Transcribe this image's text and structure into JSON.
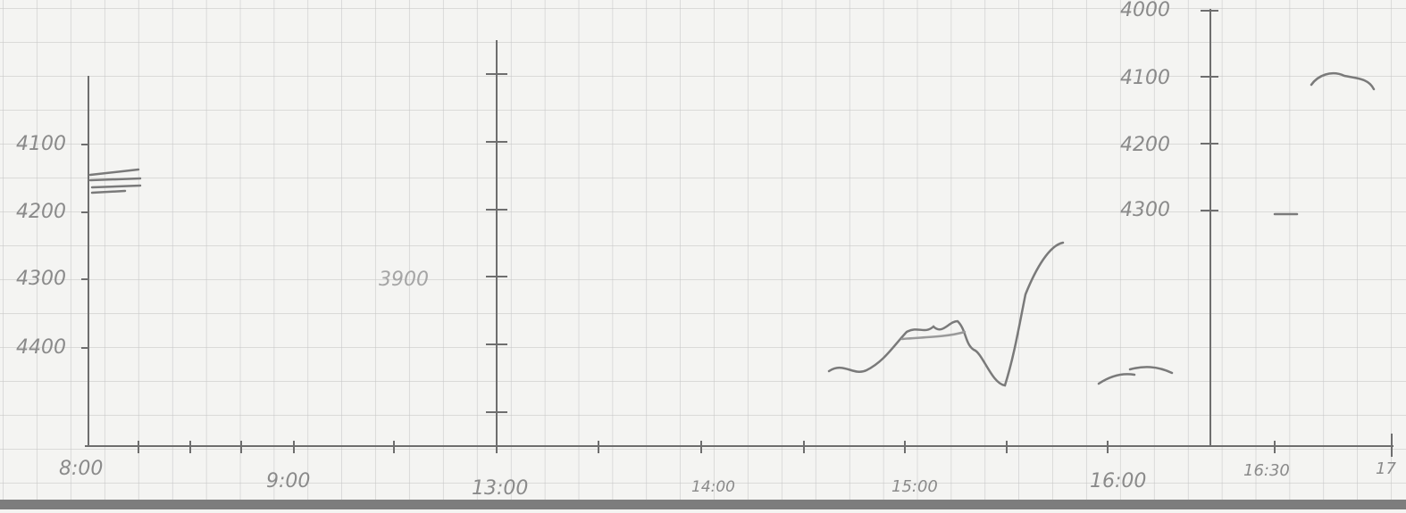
{
  "left_axis": {
    "labels": [
      "4100",
      "4200",
      "4300",
      "4400"
    ]
  },
  "middle_axis": {
    "labels": [
      "3900"
    ]
  },
  "right_axis": {
    "labels": [
      "4000",
      "4100",
      "4200",
      "4300"
    ]
  },
  "time_axis": {
    "labels": [
      "8:00",
      "9:00",
      "13:00",
      "14:00",
      "15:00",
      "16:00",
      "16:30",
      "17"
    ]
  }
}
